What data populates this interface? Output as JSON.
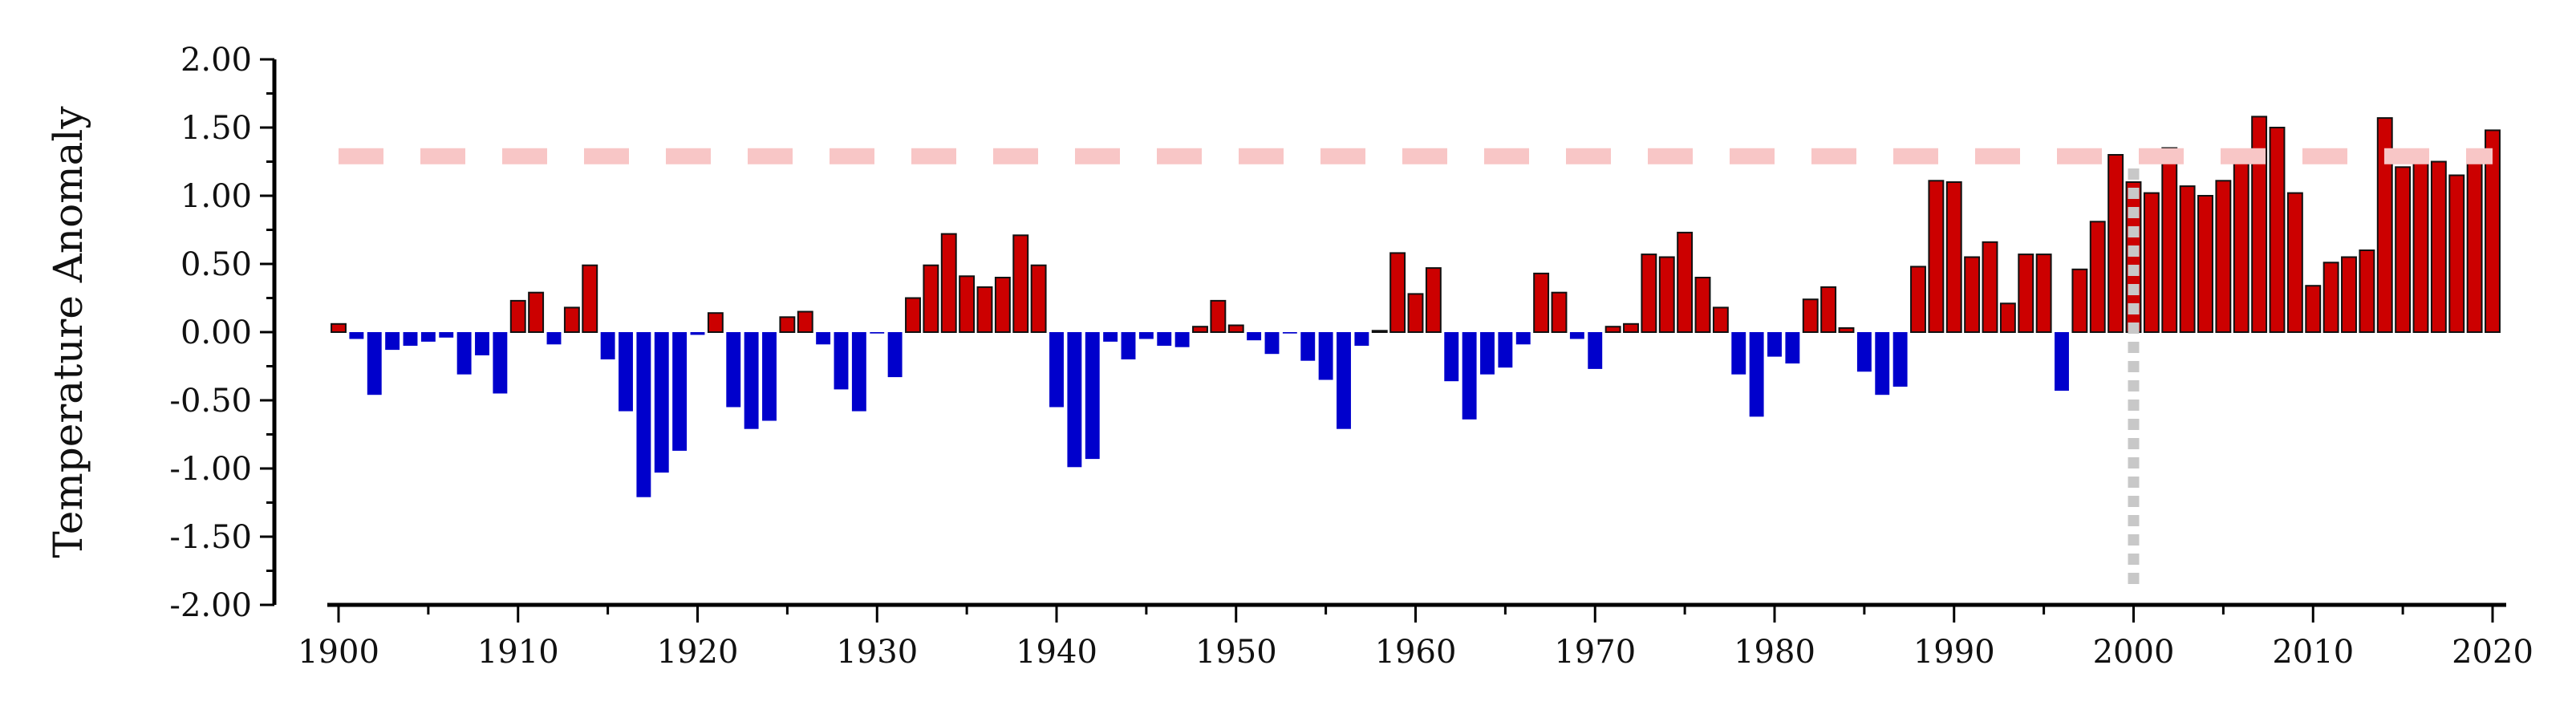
{
  "chart_data": {
    "type": "bar",
    "ylabel": "Temperature Anomaly",
    "xlabel": "",
    "ylim": [
      -2.0,
      2.0
    ],
    "xlim": [
      1900,
      2020
    ],
    "x_ticks": [
      1900,
      1910,
      1920,
      1930,
      1940,
      1950,
      1960,
      1970,
      1980,
      1990,
      2000,
      2010,
      2020
    ],
    "y_ticks": [
      "2.00",
      "1.50",
      "1.00",
      "0.50",
      "0.00",
      "-0.50",
      "-1.00",
      "-1.50",
      "-2.00"
    ],
    "grid": false,
    "colors": {
      "positive": "#cc0000",
      "negative": "#0000cc",
      "threshold_line": "#f8c6c6",
      "marker_line": "#c8c8c8"
    },
    "threshold": 1.29,
    "marker_year": 2000,
    "years": [
      1900,
      1901,
      1902,
      1903,
      1904,
      1905,
      1906,
      1907,
      1908,
      1909,
      1910,
      1911,
      1912,
      1913,
      1914,
      1915,
      1916,
      1917,
      1918,
      1919,
      1920,
      1921,
      1922,
      1923,
      1924,
      1925,
      1926,
      1927,
      1928,
      1929,
      1930,
      1931,
      1932,
      1933,
      1934,
      1935,
      1936,
      1937,
      1938,
      1939,
      1940,
      1941,
      1942,
      1943,
      1944,
      1945,
      1946,
      1947,
      1948,
      1949,
      1950,
      1951,
      1952,
      1953,
      1954,
      1955,
      1956,
      1957,
      1958,
      1959,
      1960,
      1961,
      1962,
      1963,
      1964,
      1965,
      1966,
      1967,
      1968,
      1969,
      1970,
      1971,
      1972,
      1973,
      1974,
      1975,
      1976,
      1977,
      1978,
      1979,
      1980,
      1981,
      1982,
      1983,
      1984,
      1985,
      1986,
      1987,
      1988,
      1989,
      1990,
      1991,
      1992,
      1993,
      1994,
      1995,
      1996,
      1997,
      1998,
      1999,
      2000,
      2001,
      2002,
      2003,
      2004,
      2005,
      2006,
      2007,
      2008,
      2009,
      2010,
      2011,
      2012,
      2013,
      2014,
      2015,
      2016,
      2017,
      2018,
      2019,
      2020
    ],
    "values": [
      0.06,
      -0.05,
      -0.46,
      -0.13,
      -0.1,
      -0.07,
      -0.04,
      -0.31,
      -0.17,
      -0.45,
      0.23,
      0.29,
      -0.09,
      0.18,
      0.49,
      -0.2,
      -0.58,
      -1.21,
      -1.03,
      -0.87,
      -0.02,
      0.14,
      -0.55,
      -0.71,
      -0.65,
      0.11,
      0.15,
      -0.09,
      -0.42,
      -0.58,
      -0.01,
      -0.33,
      0.25,
      0.49,
      0.72,
      0.41,
      0.33,
      0.4,
      0.71,
      0.49,
      -0.55,
      -0.99,
      -0.93,
      -0.07,
      -0.2,
      -0.05,
      -0.1,
      -0.11,
      0.04,
      0.23,
      0.05,
      -0.06,
      -0.16,
      -0.01,
      -0.21,
      -0.35,
      -0.71,
      -0.1,
      0.01,
      0.58,
      0.28,
      0.47,
      -0.36,
      -0.64,
      -0.31,
      -0.26,
      -0.09,
      0.43,
      0.29,
      -0.05,
      -0.27,
      0.04,
      0.06,
      0.57,
      0.55,
      0.73,
      0.4,
      0.18,
      -0.31,
      -0.62,
      -0.18,
      -0.23,
      0.24,
      0.33,
      0.03,
      -0.29,
      -0.46,
      -0.4,
      0.48,
      1.11,
      1.1,
      0.55,
      0.66,
      0.21,
      0.57,
      0.57,
      -0.43,
      0.46,
      0.81,
      1.3,
      1.1,
      1.02,
      1.35,
      1.07,
      1.0,
      1.11,
      1.33,
      1.58,
      1.5,
      1.02,
      0.34,
      0.51,
      0.55,
      0.6,
      1.57,
      1.21,
      1.33,
      1.25,
      1.15,
      1.27,
      1.48
    ]
  }
}
